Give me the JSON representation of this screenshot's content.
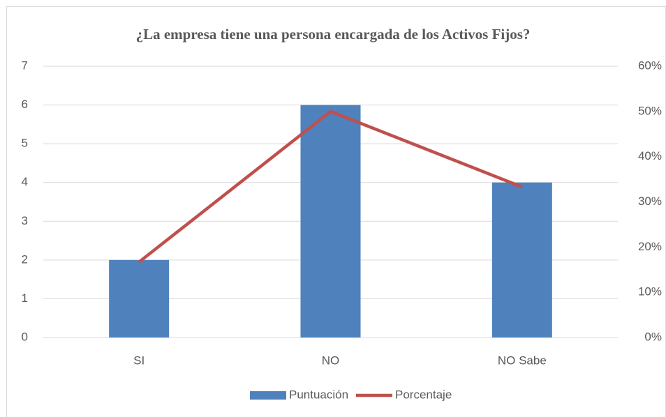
{
  "chart_data": {
    "type": "bar",
    "title": "¿La empresa tiene una persona encargada de los Activos Fijos?",
    "categories": [
      "SI",
      "NO",
      "NO Sabe"
    ],
    "series": [
      {
        "name": "Puntuación",
        "color": "#4f81bd",
        "type": "bar",
        "values": [
          2,
          6,
          4
        ]
      },
      {
        "name": "Porcentaje",
        "color": "#c0504d",
        "type": "line",
        "axis": "y2",
        "values": [
          16.7,
          50,
          33.3
        ]
      }
    ],
    "ylim": [
      0,
      7
    ],
    "yticks": [
      0,
      1,
      2,
      3,
      4,
      5,
      6,
      7
    ],
    "y2lim": [
      0,
      60
    ],
    "y2ticks": [
      {
        "value": 0,
        "label": "0%"
      },
      {
        "value": 10,
        "label": "10%"
      },
      {
        "value": 20,
        "label": "20%"
      },
      {
        "value": 30,
        "label": "30%"
      },
      {
        "value": 40,
        "label": "40%"
      },
      {
        "value": 50,
        "label": "50%"
      },
      {
        "value": 60,
        "label": "60%"
      }
    ],
    "grid": true,
    "legend": "bottom"
  }
}
